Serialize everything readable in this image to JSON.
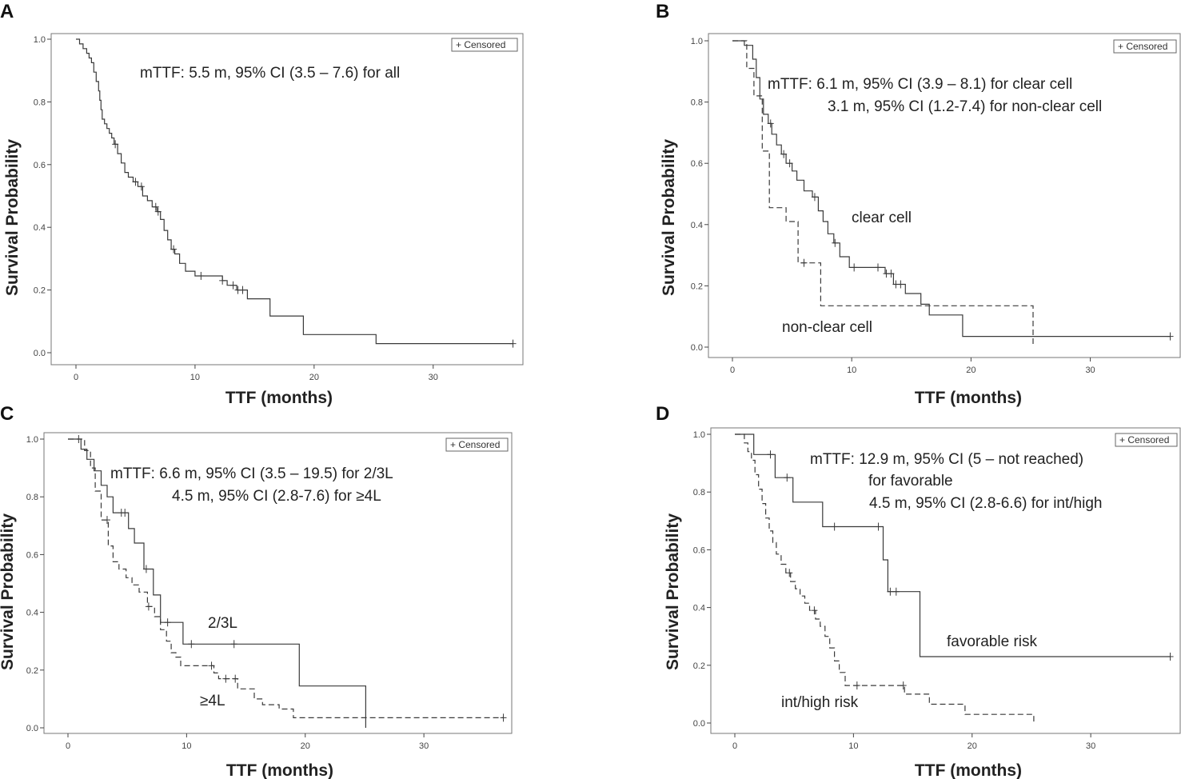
{
  "chart_data": [
    {
      "type": "line",
      "panel": "A",
      "xlabel": "TTF (months)",
      "ylabel": "Survival Probability",
      "xlim": [
        0,
        37
      ],
      "ylim": [
        0,
        1.0
      ],
      "xticks": [
        "0",
        "10",
        "20",
        "30"
      ],
      "yticks": [
        "0.0",
        "0.2",
        "0.4",
        "0.6",
        "0.8",
        "1.0"
      ],
      "legend": "+ Censored",
      "annotations": [
        "mTTF: 5.5 m, 95% CI (3.5 – 7.6) for all"
      ],
      "series": [
        {
          "name": "all",
          "style": "solid",
          "x": [
            0,
            0.3,
            0.6,
            0.9,
            1.1,
            1.3,
            1.5,
            1.7,
            1.9,
            2.0,
            2.1,
            2.2,
            2.4,
            2.6,
            2.8,
            3.0,
            3.2,
            3.5,
            3.8,
            4.1,
            4.4,
            4.8,
            5.2,
            5.6,
            6.0,
            6.4,
            6.8,
            7.1,
            7.4,
            7.7,
            8.0,
            8.3,
            8.7,
            9.2,
            10.0,
            12.3,
            12.7,
            13.5,
            14.4,
            16.3,
            19.1,
            25.2,
            36.7
          ],
          "y": [
            1.0,
            0.985,
            0.97,
            0.955,
            0.94,
            0.925,
            0.895,
            0.865,
            0.835,
            0.805,
            0.775,
            0.745,
            0.73,
            0.715,
            0.7,
            0.685,
            0.665,
            0.635,
            0.605,
            0.575,
            0.56,
            0.545,
            0.53,
            0.5,
            0.485,
            0.465,
            0.45,
            0.425,
            0.39,
            0.36,
            0.33,
            0.315,
            0.285,
            0.26,
            0.245,
            0.23,
            0.215,
            0.2,
            0.172,
            0.117,
            0.058,
            0.029,
            0.029
          ],
          "censored_x": [
            3.3,
            5.0,
            5.5,
            6.7,
            6.9,
            8.2,
            10.5,
            12.3,
            13.2,
            13.6,
            14.0,
            36.7
          ]
        }
      ]
    },
    {
      "type": "line",
      "panel": "B",
      "xlabel": "TTF (months)",
      "ylabel": "Survival Probability",
      "xlim": [
        0,
        37
      ],
      "ylim": [
        0,
        1.0
      ],
      "xticks": [
        "0",
        "10",
        "20",
        "30"
      ],
      "yticks": [
        "0.0",
        "0.2",
        "0.4",
        "0.6",
        "0.8",
        "1.0"
      ],
      "legend": "+ Censored",
      "annotations": [
        "mTTF: 6.1 m, 95% CI (3.9 – 8.1) for clear cell",
        "3.1 m, 95% CI (1.2-7.4) for non-clear cell",
        "clear cell",
        "non-clear cell"
      ],
      "series": [
        {
          "name": "clear cell",
          "style": "solid",
          "x": [
            0,
            1.0,
            1.7,
            2.0,
            2.3,
            2.6,
            3.0,
            3.3,
            3.7,
            4.1,
            4.5,
            5.0,
            5.4,
            6.0,
            6.7,
            7.2,
            7.6,
            8.0,
            8.5,
            9.0,
            9.8,
            12.8,
            13.5,
            14.5,
            15.8,
            16.5,
            19.3,
            36.7
          ],
          "y": [
            1.0,
            0.985,
            0.94,
            0.88,
            0.81,
            0.76,
            0.73,
            0.695,
            0.66,
            0.63,
            0.6,
            0.575,
            0.545,
            0.51,
            0.49,
            0.445,
            0.41,
            0.37,
            0.34,
            0.295,
            0.26,
            0.24,
            0.205,
            0.175,
            0.14,
            0.105,
            0.035,
            0.035
          ],
          "censored_x": [
            3.2,
            4.3,
            4.8,
            6.9,
            8.6,
            10.2,
            12.2,
            12.9,
            13.3,
            13.7,
            14.1,
            36.7
          ]
        },
        {
          "name": "non-clear cell",
          "style": "dashed",
          "x": [
            0,
            1.2,
            1.8,
            2.5,
            3.1,
            4.5,
            5.5,
            7.4,
            25.2
          ],
          "y": [
            1.0,
            0.91,
            0.82,
            0.64,
            0.455,
            0.41,
            0.275,
            0.135,
            0.0
          ],
          "censored_x": [
            6.0
          ]
        }
      ]
    },
    {
      "type": "line",
      "panel": "C",
      "xlabel": "TTF (months)",
      "ylabel": "Survival Probability",
      "xlim": [
        0,
        37
      ],
      "ylim": [
        0,
        1.0
      ],
      "xticks": [
        "0",
        "10",
        "20",
        "30"
      ],
      "yticks": [
        "0.0",
        "0.2",
        "0.4",
        "0.6",
        "0.8",
        "1.0"
      ],
      "legend": "+ Censored",
      "annotations": [
        "mTTF: 6.6 m, 95% CI (3.5 – 19.5) for 2/3L",
        "4.5 m, 95% CI (2.8-7.6) for ≥4L",
        "2/3L",
        "≥4L"
      ],
      "series": [
        {
          "name": "2/3L",
          "style": "solid",
          "x": [
            0,
            1.1,
            1.6,
            2.2,
            2.8,
            3.3,
            3.8,
            5.1,
            5.6,
            6.4,
            7.2,
            7.8,
            9.7,
            19.5,
            25.1
          ],
          "y": [
            1.0,
            0.965,
            0.93,
            0.89,
            0.84,
            0.8,
            0.745,
            0.69,
            0.64,
            0.55,
            0.46,
            0.365,
            0.29,
            0.145,
            0.0
          ],
          "censored_x": [
            4.5,
            4.8,
            6.6,
            8.4,
            10.4,
            14.0
          ]
        },
        {
          "name": "≥4L",
          "style": "dashed",
          "x": [
            0,
            1.4,
            1.9,
            2.3,
            2.8,
            3.4,
            3.8,
            4.3,
            4.9,
            5.4,
            6.0,
            6.7,
            7.3,
            7.8,
            8.3,
            8.7,
            9.1,
            9.5,
            12.3,
            12.7,
            14.3,
            15.7,
            16.4,
            17.8,
            19.0,
            36.7
          ],
          "y": [
            1.0,
            0.96,
            0.9,
            0.82,
            0.72,
            0.63,
            0.575,
            0.55,
            0.52,
            0.495,
            0.47,
            0.42,
            0.385,
            0.34,
            0.3,
            0.26,
            0.245,
            0.215,
            0.19,
            0.17,
            0.135,
            0.1,
            0.08,
            0.065,
            0.035,
            0.035
          ],
          "censored_x": [
            0.9,
            3.3,
            6.8,
            12.1,
            13.3,
            14.1,
            36.7
          ]
        }
      ]
    },
    {
      "type": "line",
      "panel": "D",
      "xlabel": "TTF (months)",
      "ylabel": "Survival Probability",
      "xlim": [
        0,
        37
      ],
      "ylim": [
        0,
        1.0
      ],
      "xticks": [
        "0",
        "10",
        "20",
        "30"
      ],
      "yticks": [
        "0.0",
        "0.2",
        "0.4",
        "0.6",
        "0.8",
        "1.0"
      ],
      "legend": "+ Censored",
      "annotations": [
        "mTTF: 12.9 m, 95% CI (5 – not reached)",
        "for favorable",
        "4.5 m, 95% CI (2.8-6.6) for int/high",
        "favorable risk",
        "int/high risk"
      ],
      "series": [
        {
          "name": "favorable risk",
          "style": "solid",
          "x": [
            0,
            1.6,
            3.4,
            4.9,
            7.4,
            12.5,
            12.9,
            15.6,
            36.7
          ],
          "y": [
            1.0,
            0.93,
            0.85,
            0.765,
            0.68,
            0.565,
            0.455,
            0.23,
            0.23
          ],
          "censored_x": [
            3.0,
            4.4,
            8.4,
            12.1,
            13.1,
            13.6,
            36.7
          ]
        },
        {
          "name": "int/high risk",
          "style": "dashed",
          "x": [
            0,
            0.8,
            1.1,
            1.4,
            1.7,
            2.0,
            2.3,
            2.6,
            2.9,
            3.2,
            3.5,
            3.9,
            4.3,
            4.7,
            5.1,
            5.5,
            5.9,
            6.3,
            6.8,
            7.2,
            7.6,
            8.0,
            8.4,
            8.8,
            9.3,
            14.3,
            16.4,
            19.4,
            25.2
          ],
          "y": [
            1.0,
            0.97,
            0.94,
            0.91,
            0.86,
            0.81,
            0.76,
            0.71,
            0.665,
            0.625,
            0.585,
            0.55,
            0.52,
            0.49,
            0.465,
            0.44,
            0.415,
            0.39,
            0.36,
            0.335,
            0.3,
            0.26,
            0.215,
            0.175,
            0.13,
            0.1,
            0.065,
            0.03,
            0.0
          ],
          "censored_x": [
            4.6,
            6.7,
            10.3,
            14.2
          ]
        }
      ]
    }
  ]
}
